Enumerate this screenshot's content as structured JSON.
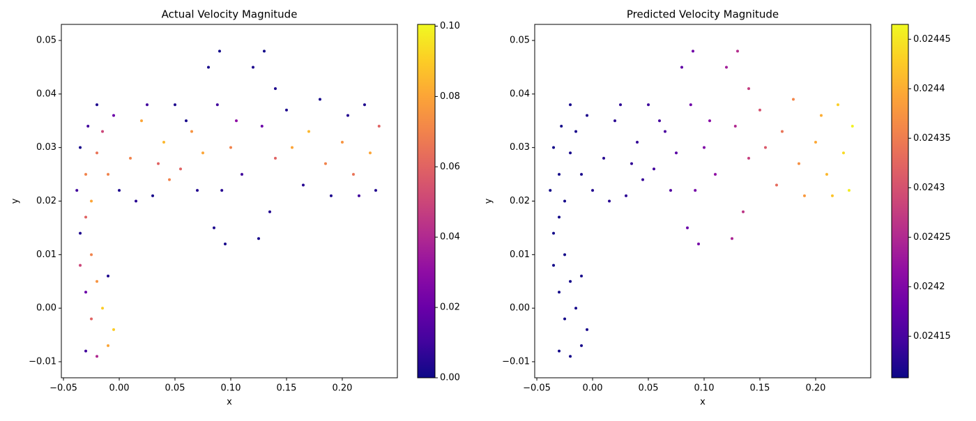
{
  "chart_data": [
    {
      "type": "scatter",
      "title": "Actual Velocity Magnitude",
      "xlabel": "x",
      "ylabel": "y",
      "colormap": "plasma",
      "x": [
        -0.03,
        -0.02,
        -0.01,
        -0.005,
        -0.025,
        -0.015,
        -0.03,
        -0.02,
        -0.01,
        -0.035,
        -0.025,
        -0.035,
        -0.03,
        -0.025,
        -0.038,
        -0.03,
        -0.035,
        -0.02,
        -0.028,
        -0.015,
        -0.02,
        -0.005,
        -0.01,
        0.0,
        0.01,
        0.015,
        0.02,
        0.025,
        0.03,
        0.035,
        0.04,
        0.045,
        0.05,
        0.055,
        0.06,
        0.065,
        0.07,
        0.075,
        0.08,
        0.085,
        0.09,
        0.095,
        0.088,
        0.092,
        0.1,
        0.105,
        0.11,
        0.12,
        0.125,
        0.13,
        0.135,
        0.128,
        0.14,
        0.14,
        0.15,
        0.155,
        0.165,
        0.17,
        0.18,
        0.185,
        0.19,
        0.2,
        0.205,
        0.21,
        0.215,
        0.22,
        0.225,
        0.23,
        0.233
      ],
      "y": [
        -0.008,
        -0.009,
        -0.007,
        -0.004,
        -0.002,
        0.0,
        0.003,
        0.005,
        0.006,
        0.008,
        0.01,
        0.014,
        0.017,
        0.02,
        0.022,
        0.025,
        0.03,
        0.029,
        0.034,
        0.033,
        0.038,
        0.036,
        0.025,
        0.022,
        0.028,
        0.02,
        0.035,
        0.038,
        0.021,
        0.027,
        0.031,
        0.024,
        0.038,
        0.026,
        0.035,
        0.033,
        0.022,
        0.029,
        0.045,
        0.015,
        0.048,
        0.012,
        0.038,
        0.022,
        0.03,
        0.035,
        0.025,
        0.045,
        0.013,
        0.048,
        0.018,
        0.034,
        0.041,
        0.028,
        0.037,
        0.03,
        0.023,
        0.033,
        0.039,
        0.027,
        0.021,
        0.031,
        0.036,
        0.025,
        0.021,
        0.038,
        0.029,
        0.022,
        0.034
      ],
      "c": [
        0.01,
        0.04,
        0.08,
        0.09,
        0.06,
        0.09,
        0.02,
        0.075,
        0.003,
        0.05,
        0.07,
        0.003,
        0.06,
        0.08,
        0.01,
        0.07,
        0.002,
        0.065,
        0.01,
        0.05,
        0.003,
        0.02,
        0.07,
        0.003,
        0.07,
        0.005,
        0.08,
        0.01,
        0.002,
        0.06,
        0.085,
        0.07,
        0.003,
        0.06,
        0.002,
        0.075,
        0.004,
        0.08,
        0.002,
        0.003,
        0.001,
        0.002,
        0.01,
        0.005,
        0.07,
        0.03,
        0.01,
        0.003,
        0.002,
        0.001,
        0.004,
        0.02,
        0.003,
        0.06,
        0.003,
        0.08,
        0.005,
        0.085,
        0.002,
        0.07,
        0.003,
        0.075,
        0.004,
        0.065,
        0.01,
        0.003,
        0.08,
        0.004,
        0.06
      ],
      "xlim": [
        -0.0519,
        0.2494
      ],
      "ylim": [
        -0.013,
        0.053
      ],
      "clim": [
        0,
        0.1005
      ],
      "xticks": [
        {
          "value": -0.05,
          "label": "−0.05"
        },
        {
          "value": 0,
          "label": "0.00"
        },
        0.05,
        {
          "value": 0.1,
          "label": "0.10"
        },
        0.15,
        {
          "value": 0.2,
          "label": "0.20"
        }
      ],
      "yticks": [
        {
          "value": -0.01,
          "label": "−0.01"
        },
        {
          "value": 0,
          "label": "0.00"
        },
        0.01,
        0.02,
        0.03,
        0.04,
        0.05
      ],
      "cticks": [
        {
          "value": 0,
          "label": "0.00"
        },
        0.02,
        0.04,
        0.06,
        0.08,
        {
          "value": 0.1,
          "label": "0.10"
        }
      ]
    },
    {
      "type": "scatter",
      "title": "Predicted Velocity Magnitude",
      "xlabel": "x",
      "ylabel": "y",
      "colormap": "plasma",
      "x": [
        -0.03,
        -0.02,
        -0.01,
        -0.005,
        -0.025,
        -0.015,
        -0.03,
        -0.02,
        -0.01,
        -0.035,
        -0.025,
        -0.035,
        -0.03,
        -0.025,
        -0.038,
        -0.03,
        -0.035,
        -0.02,
        -0.028,
        -0.015,
        -0.02,
        -0.005,
        -0.01,
        0.0,
        0.01,
        0.015,
        0.02,
        0.025,
        0.03,
        0.035,
        0.04,
        0.045,
        0.05,
        0.055,
        0.06,
        0.065,
        0.07,
        0.075,
        0.08,
        0.085,
        0.09,
        0.095,
        0.088,
        0.092,
        0.1,
        0.105,
        0.11,
        0.12,
        0.125,
        0.13,
        0.135,
        0.128,
        0.14,
        0.14,
        0.15,
        0.155,
        0.165,
        0.17,
        0.18,
        0.185,
        0.19,
        0.2,
        0.205,
        0.21,
        0.215,
        0.22,
        0.225,
        0.23,
        0.233
      ],
      "y": [
        -0.008,
        -0.009,
        -0.007,
        -0.004,
        -0.002,
        0.0,
        0.003,
        0.005,
        0.006,
        0.008,
        0.01,
        0.014,
        0.017,
        0.02,
        0.022,
        0.025,
        0.03,
        0.029,
        0.034,
        0.033,
        0.038,
        0.036,
        0.025,
        0.022,
        0.028,
        0.02,
        0.035,
        0.038,
        0.021,
        0.027,
        0.031,
        0.024,
        0.038,
        0.026,
        0.035,
        0.033,
        0.022,
        0.029,
        0.045,
        0.015,
        0.048,
        0.012,
        0.038,
        0.022,
        0.03,
        0.035,
        0.025,
        0.045,
        0.013,
        0.048,
        0.018,
        0.034,
        0.041,
        0.028,
        0.037,
        0.03,
        0.023,
        0.033,
        0.039,
        0.027,
        0.021,
        0.031,
        0.036,
        0.025,
        0.021,
        0.038,
        0.029,
        0.022,
        0.034
      ],
      "c": [
        0.024112,
        0.024113,
        0.024115,
        0.024116,
        0.024112,
        0.024114,
        0.024112,
        0.024113,
        0.024115,
        0.024111,
        0.024112,
        0.024111,
        0.024112,
        0.024113,
        0.024111,
        0.024112,
        0.024111,
        0.024114,
        0.024112,
        0.024116,
        0.024114,
        0.024118,
        0.024117,
        0.024122,
        0.024125,
        0.024126,
        0.024128,
        0.024129,
        0.02413,
        0.024132,
        0.024134,
        0.024137,
        0.02414,
        0.024145,
        0.024148,
        0.024152,
        0.024158,
        0.024165,
        0.02417,
        0.024178,
        0.024185,
        0.02419,
        0.024182,
        0.024188,
        0.0242,
        0.024208,
        0.024215,
        0.024235,
        0.024245,
        0.024255,
        0.024265,
        0.02425,
        0.024275,
        0.024278,
        0.0243,
        0.02431,
        0.02433,
        0.02434,
        0.02436,
        0.02437,
        0.02438,
        0.024395,
        0.0244,
        0.02441,
        0.02442,
        0.02443,
        0.02444,
        0.024455,
        0.02446
      ],
      "xlim": [
        -0.0519,
        0.2494
      ],
      "ylim": [
        -0.013,
        0.053
      ],
      "clim": [
        0.024108,
        0.024465
      ],
      "xticks": [
        {
          "value": -0.05,
          "label": "−0.05"
        },
        {
          "value": 0,
          "label": "0.00"
        },
        0.05,
        {
          "value": 0.1,
          "label": "0.10"
        },
        0.15,
        {
          "value": 0.2,
          "label": "0.20"
        }
      ],
      "yticks": [
        {
          "value": -0.01,
          "label": "−0.01"
        },
        {
          "value": 0,
          "label": "0.00"
        },
        0.01,
        0.02,
        0.03,
        0.04,
        0.05
      ],
      "cticks": [
        0.02415,
        0.0242,
        0.02425,
        0.0243,
        0.02435,
        0.0244,
        0.02445
      ]
    }
  ]
}
